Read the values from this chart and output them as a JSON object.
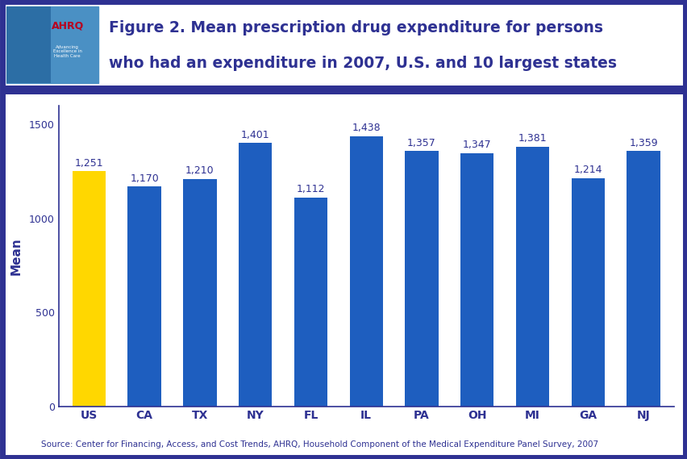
{
  "categories": [
    "US",
    "CA",
    "TX",
    "NY",
    "FL",
    "IL",
    "PA",
    "OH",
    "MI",
    "GA",
    "NJ"
  ],
  "values": [
    1251,
    1170,
    1210,
    1401,
    1112,
    1438,
    1357,
    1347,
    1381,
    1214,
    1359
  ],
  "bar_colors": [
    "#FFD700",
    "#1E5EBF",
    "#1E5EBF",
    "#1E5EBF",
    "#1E5EBF",
    "#1E5EBF",
    "#1E5EBF",
    "#1E5EBF",
    "#1E5EBF",
    "#1E5EBF",
    "#1E5EBF"
  ],
  "value_labels": [
    "1,251",
    "1,170",
    "1,210",
    "1,401",
    "1,112",
    "1,438",
    "1,357",
    "1,347",
    "1,381",
    "1,214",
    "1,359"
  ],
  "title_line1": "Figure 2. Mean prescription drug expenditure for persons",
  "title_line2": "who had an expenditure in 2007, U.S. and 10 largest states",
  "ylabel": "Mean",
  "ylim": [
    0,
    1600
  ],
  "yticks": [
    0,
    500,
    1000,
    1500
  ],
  "source_text": "Source: Center for Financing, Access, and Cost Trends, AHRQ, Household Component of the Medical Expenditure Panel Survey, 2007",
  "title_color": "#2E3192",
  "axis_color": "#2E3192",
  "label_color": "#2E3192",
  "border_color": "#2E3192",
  "background_color": "#FFFFFF",
  "bar_label_fontsize": 9,
  "ylabel_fontsize": 11,
  "xtick_fontsize": 10,
  "ytick_fontsize": 9,
  "source_fontsize": 7.5,
  "title_fontsize": 13.5,
  "logo_bg_color": "#4A90C4",
  "logo_ahrq_color": "#B8001E"
}
